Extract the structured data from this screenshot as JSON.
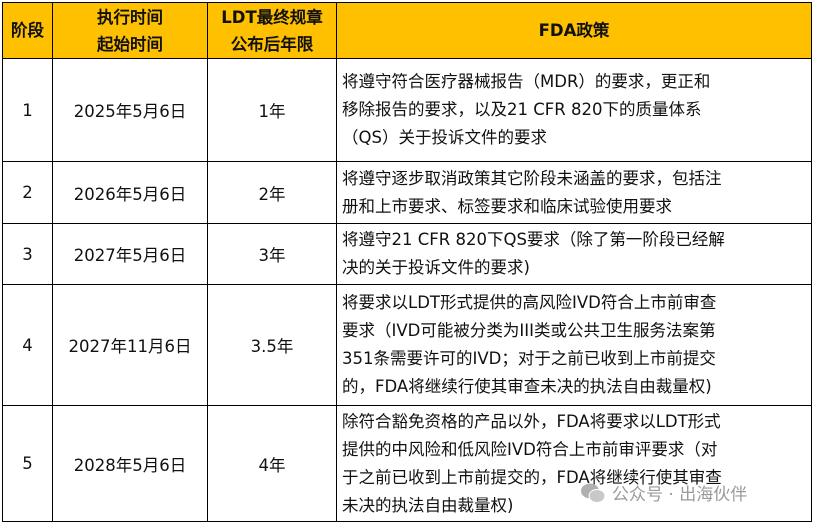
{
  "header": {
    "stage": "阶段",
    "start": [
      "执行时间",
      "起始时间"
    ],
    "deadline": [
      "LDT最终规章",
      "公布后年限"
    ],
    "policy": "FDA政策"
  },
  "rows": [
    {
      "stage": "1",
      "start": "2025年5月6日",
      "deadline": "1年",
      "policy": [
        "将遵守符合医疗器械报告（MDR）的要求，更正和",
        "移除报告的要求，以及21 CFR 820下的质量体系",
        "（QS）关于投诉文件的要求"
      ]
    },
    {
      "stage": "2",
      "start": "2026年5月6日",
      "deadline": "2年",
      "policy": [
        "将遵守逐步取消政策其它阶段未涵盖的要求，包括注",
        "册和上市要求、标签要求和临床试验使用要求"
      ]
    },
    {
      "stage": "3",
      "start": "2027年5月6日",
      "deadline": "3年",
      "policy": [
        "将遵守21 CFR 820下QS要求（除了第一阶段已经解",
        "决的关于投诉文件的要求)"
      ]
    },
    {
      "stage": "4",
      "start": "2027年11月6日",
      "deadline": "3.5年",
      "policy": [
        "将要求以LDT形式提供的高风险IVD符合上市前审查",
        "要求（IVD可能被分类为III类或公共卫生服务法案第",
        "351条需要许可的IVD；对于之前已收到上市前提交",
        "的，FDA将继续行使其审查未决的执法自由裁量权)"
      ]
    },
    {
      "stage": "5",
      "start": "2028年5月6日",
      "deadline": "4年",
      "policy": [
        "除符合豁免资格的产品以外，FDA将要求以LDT形式",
        "提供的中风险和低风险IVD符合上市前审评要求（对",
        "于之前已收到上市前提交的，FDA将继续行使其审查",
        "未决的执法自由裁量权)"
      ]
    }
  ],
  "watermark": "公众号 · 出海伙伴",
  "colors": {
    "header_bg": "#FFC000"
  }
}
